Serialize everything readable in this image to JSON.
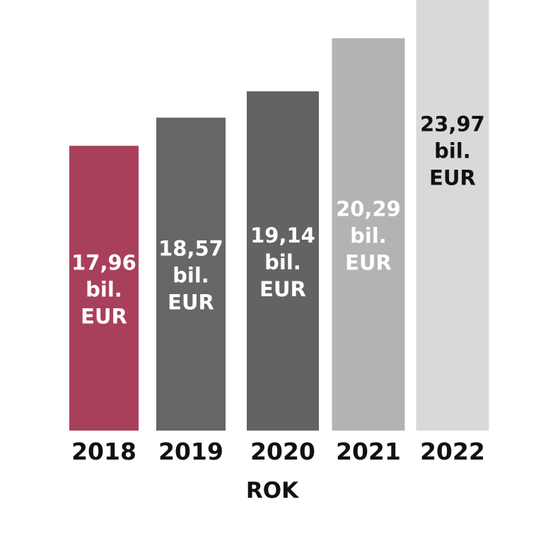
{
  "chart_data": {
    "type": "bar",
    "categories": [
      "2018",
      "2019",
      "2020",
      "2021",
      "2022"
    ],
    "values": [
      17.96,
      18.57,
      19.14,
      20.29,
      23.97
    ],
    "data_labels": [
      [
        "17,96",
        "bil.",
        "EUR"
      ],
      [
        "18,57",
        "bil.",
        "EUR"
      ],
      [
        "19,14",
        "bil.",
        "EUR"
      ],
      [
        "20,29",
        "bil.",
        "EUR"
      ],
      [
        "23,97",
        "bil.",
        "EUR"
      ]
    ],
    "bar_colors": [
      "#a8405c",
      "#666666",
      "#636363",
      "#b3b3b3",
      "#d9d9d9"
    ],
    "label_colors": [
      "#ffffff",
      "#ffffff",
      "#ffffff",
      "#ffffff",
      "#111111"
    ],
    "xlabel": "ROK",
    "ylabel": "",
    "title": "",
    "grid": false,
    "legend": "none"
  }
}
